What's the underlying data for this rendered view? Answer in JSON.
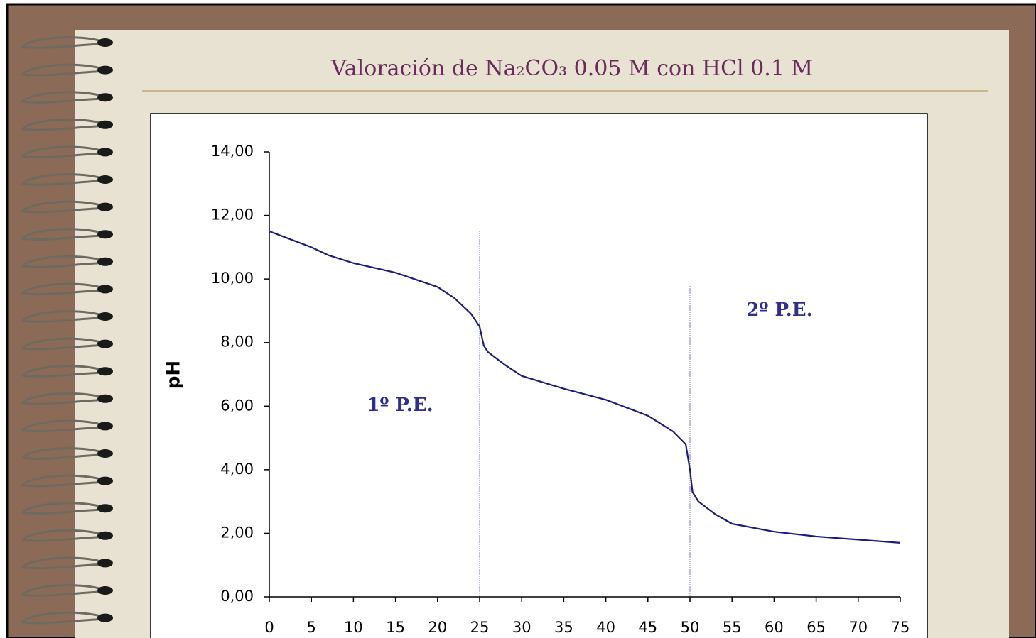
{
  "chart_data": {
    "type": "line",
    "title": "Valoración de Na₂CO₃ 0.05 M con HCl 0.1 M",
    "y_label": "pH",
    "x": [
      0,
      2,
      5,
      7,
      10,
      15,
      20,
      22,
      24,
      25,
      25.5,
      26,
      28,
      30,
      35,
      40,
      45,
      48,
      49.5,
      50,
      50.3,
      51,
      53,
      55,
      60,
      65,
      70,
      75
    ],
    "values": [
      11.5,
      11.3,
      11.0,
      10.75,
      10.5,
      10.2,
      9.75,
      9.4,
      8.9,
      8.5,
      7.9,
      7.7,
      7.3,
      6.95,
      6.55,
      6.2,
      5.7,
      5.2,
      4.8,
      4.0,
      3.3,
      3.0,
      2.6,
      2.3,
      2.05,
      1.9,
      1.8,
      1.7
    ],
    "color": "#1c1c80",
    "xlim": [
      0,
      75
    ],
    "xticks": [
      0,
      5,
      10,
      15,
      20,
      25,
      30,
      35,
      40,
      45,
      50,
      55,
      60,
      65,
      70,
      75
    ],
    "ylim": [
      0,
      14
    ],
    "yticks": [
      {
        "value": 0,
        "label": "0,00"
      },
      {
        "value": 2,
        "label": "2,00"
      },
      {
        "value": 4,
        "label": "4,00"
      },
      {
        "value": 6,
        "label": "6,00"
      },
      {
        "value": 8,
        "label": "8,00"
      },
      {
        "value": 10,
        "label": "10,00"
      },
      {
        "value": 12,
        "label": "12,00"
      },
      {
        "value": 14,
        "label": "14,00"
      }
    ],
    "markers": [
      {
        "x": 25,
        "label": "1º P.E."
      },
      {
        "x": 50,
        "label": "2º P.E."
      }
    ],
    "grid": false
  }
}
